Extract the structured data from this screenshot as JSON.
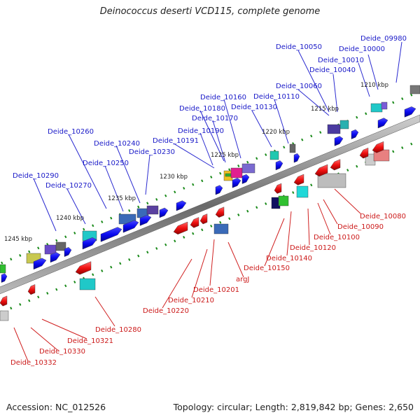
{
  "title": "Deinococcus deserti VCD115, complete genome",
  "footer": {
    "accession": "Accession: NC_012526",
    "topology": "Topology: circular; Length: 2,819,842 bp; Genes: 2,650"
  },
  "ticks": [
    "1210 kbp",
    "1215 kbp",
    "1220 kbp",
    "1225 kbp",
    "1230 kbp",
    "1235 kbp",
    "1240 kbp",
    "1245 kbp"
  ],
  "top_labels": [
    "Deide_09980",
    "Deide_10000",
    "Deide_10050",
    "Deide_10010",
    "Deide_10040",
    "Deide_10060",
    "Deide_10110",
    "Deide_10160",
    "Deide_10130",
    "Deide_10180",
    "Deide_10170",
    "Deide_10190",
    "Deide_10191",
    "Deide_10260",
    "Deide_10240",
    "Deide_10230",
    "Deide_10250",
    "Deide_10290",
    "Deide_10270"
  ],
  "bottom_labels": [
    "Deide_10080",
    "Deide_10090",
    "Deide_10100",
    "Deide_10120",
    "Deide_10140",
    "Deide_10150",
    "argJ",
    "Deide_10201",
    "Deide_10210",
    "Deide_10220",
    "Deide_10280",
    "Deide_10321",
    "Deide_10330",
    "Deide_10332"
  ],
  "colors": {
    "forward_strand": "#1010e8",
    "reverse_strand": "#e81010",
    "backbone": "#8a8a8a",
    "gc_skew_dash": "#1a8a1a"
  }
}
